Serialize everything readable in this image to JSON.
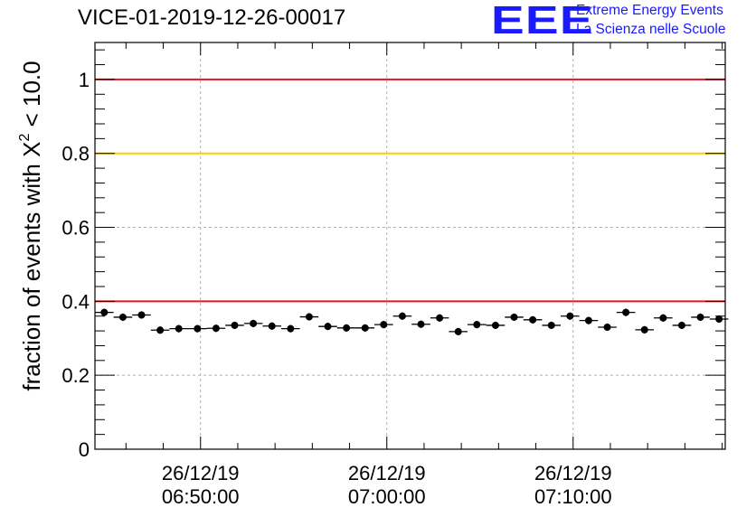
{
  "title": "VICE-01-2019-12-26-00017",
  "logo": {
    "mark": "EEE",
    "line1": "Extreme Energy Events",
    "line2": "La Scienza nelle Scuole"
  },
  "colors": {
    "red_line": "#e8141c",
    "yellow_line": "#ffcc00",
    "marker": "#000000",
    "grid": "#b0b0b0",
    "logo": "#1a1aff"
  },
  "chart_data": {
    "type": "scatter",
    "title": "VICE-01-2019-12-26-00017",
    "ylabel": {
      "prefix": "fraction of events with X",
      "sup": "2",
      "suffix": " < 10.0"
    },
    "ylim": [
      0,
      1.1
    ],
    "yticks": [
      0,
      0.2,
      0.4,
      0.6,
      0.8,
      1
    ],
    "ytick_labels": [
      "0",
      "0.2",
      "0.4",
      "0.6",
      "0.8",
      "1"
    ],
    "xlim": [
      "2019-12-26 06:44:20",
      "2019-12-26 07:18:10"
    ],
    "xticks": [
      "2019-12-26 06:50:00",
      "2019-12-26 07:00:00",
      "2019-12-26 07:10:00"
    ],
    "xtick_labels": [
      [
        "26/12/19",
        "06:50:00"
      ],
      [
        "26/12/19",
        "07:00:00"
      ],
      [
        "26/12/19",
        "07:10:00"
      ]
    ],
    "grid": true,
    "reference_lines": [
      {
        "y": 1.0,
        "color": "red"
      },
      {
        "y": 0.8,
        "color": "yellow"
      },
      {
        "y": 0.4,
        "color": "red"
      }
    ],
    "x": [
      "06:44:50",
      "06:45:50",
      "06:46:50",
      "06:47:50",
      "06:48:50",
      "06:49:50",
      "06:50:50",
      "06:51:50",
      "06:52:50",
      "06:53:50",
      "06:54:50",
      "06:55:50",
      "06:56:50",
      "06:57:50",
      "06:58:50",
      "06:59:50",
      "07:00:50",
      "07:01:50",
      "07:02:50",
      "07:03:50",
      "07:04:50",
      "07:05:50",
      "07:06:50",
      "07:07:50",
      "07:08:50",
      "07:09:50",
      "07:10:50",
      "07:11:50",
      "07:12:50",
      "07:13:50",
      "07:14:50",
      "07:15:50",
      "07:16:50",
      "07:17:50"
    ],
    "values": [
      0.37,
      0.357,
      0.363,
      0.322,
      0.326,
      0.326,
      0.327,
      0.335,
      0.34,
      0.333,
      0.326,
      0.358,
      0.332,
      0.328,
      0.328,
      0.337,
      0.36,
      0.338,
      0.355,
      0.318,
      0.337,
      0.335,
      0.357,
      0.35,
      0.335,
      0.36,
      0.348,
      0.33,
      0.37,
      0.323,
      0.355,
      0.335,
      0.357,
      0.352
    ],
    "yerr": 0.01
  }
}
